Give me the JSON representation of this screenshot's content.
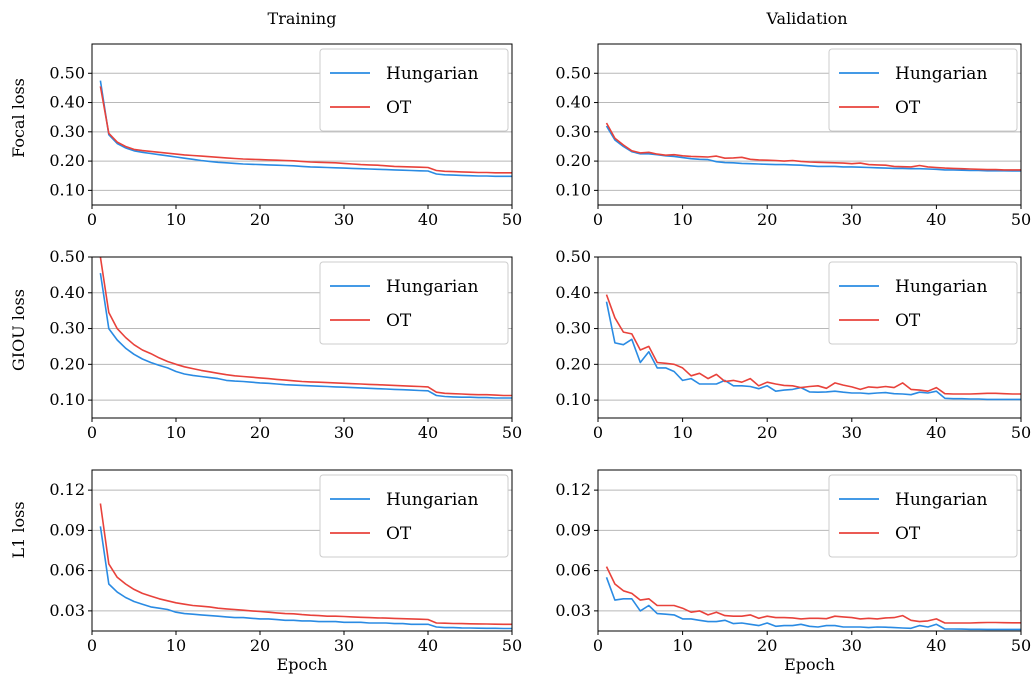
{
  "column_titles": [
    "Training",
    "Validation"
  ],
  "row_labels": [
    "Focal loss",
    "GIOU loss",
    "L1 loss"
  ],
  "colors": {
    "Hungarian": "#2a8be3",
    "OT": "#e8423b",
    "grid": "#b8b8b8"
  },
  "chart_data": [
    {
      "type": "line",
      "title": "Training",
      "xlabel": "",
      "ylabel": "Focal loss",
      "xlim": [
        0,
        50
      ],
      "ylim": [
        0.05,
        0.6
      ],
      "xticks": [
        0,
        10,
        20,
        30,
        40,
        50
      ],
      "yticks": [
        0.1,
        0.2,
        0.3,
        0.4,
        0.5
      ],
      "ytick_labels": [
        "0.10",
        "0.20",
        "0.30",
        "0.40",
        "0.50"
      ],
      "grid": "y",
      "legend": "top-right",
      "x": [
        1,
        2,
        3,
        4,
        5,
        6,
        7,
        8,
        9,
        10,
        11,
        12,
        13,
        14,
        15,
        16,
        17,
        18,
        19,
        20,
        21,
        22,
        23,
        24,
        25,
        26,
        27,
        28,
        29,
        30,
        31,
        32,
        33,
        34,
        35,
        36,
        37,
        38,
        39,
        40,
        41,
        42,
        43,
        44,
        45,
        46,
        47,
        48,
        49,
        50
      ],
      "series": [
        {
          "name": "Hungarian",
          "values": [
            0.475,
            0.29,
            0.26,
            0.245,
            0.235,
            0.23,
            0.226,
            0.222,
            0.218,
            0.214,
            0.21,
            0.206,
            0.202,
            0.199,
            0.196,
            0.194,
            0.192,
            0.19,
            0.189,
            0.188,
            0.187,
            0.186,
            0.185,
            0.184,
            0.182,
            0.18,
            0.179,
            0.178,
            0.177,
            0.176,
            0.175,
            0.174,
            0.173,
            0.172,
            0.171,
            0.17,
            0.169,
            0.168,
            0.167,
            0.166,
            0.156,
            0.153,
            0.152,
            0.151,
            0.15,
            0.149,
            0.149,
            0.148,
            0.148,
            0.148
          ]
        },
        {
          "name": "OT",
          "values": [
            0.455,
            0.295,
            0.265,
            0.25,
            0.24,
            0.236,
            0.233,
            0.23,
            0.227,
            0.224,
            0.221,
            0.219,
            0.217,
            0.215,
            0.213,
            0.211,
            0.209,
            0.207,
            0.206,
            0.205,
            0.204,
            0.203,
            0.202,
            0.201,
            0.199,
            0.197,
            0.196,
            0.195,
            0.194,
            0.192,
            0.19,
            0.188,
            0.187,
            0.186,
            0.184,
            0.182,
            0.181,
            0.18,
            0.179,
            0.178,
            0.168,
            0.165,
            0.164,
            0.163,
            0.162,
            0.161,
            0.161,
            0.16,
            0.16,
            0.16
          ]
        }
      ]
    },
    {
      "type": "line",
      "title": "Validation",
      "xlabel": "",
      "ylabel": "",
      "xlim": [
        0,
        50
      ],
      "ylim": [
        0.05,
        0.6
      ],
      "xticks": [
        0,
        10,
        20,
        30,
        40,
        50
      ],
      "yticks": [
        0.1,
        0.2,
        0.3,
        0.4,
        0.5
      ],
      "ytick_labels": [
        "0.10",
        "0.20",
        "0.30",
        "0.40",
        "0.50"
      ],
      "grid": "y",
      "legend": "top-right",
      "x": [
        1,
        2,
        3,
        4,
        5,
        6,
        7,
        8,
        9,
        10,
        11,
        12,
        13,
        14,
        15,
        16,
        17,
        18,
        19,
        20,
        21,
        22,
        23,
        24,
        25,
        26,
        27,
        28,
        29,
        30,
        31,
        32,
        33,
        34,
        35,
        36,
        37,
        38,
        39,
        40,
        41,
        42,
        43,
        44,
        45,
        46,
        47,
        48,
        49,
        50
      ],
      "series": [
        {
          "name": "Hungarian",
          "values": [
            0.32,
            0.272,
            0.25,
            0.232,
            0.225,
            0.225,
            0.222,
            0.218,
            0.216,
            0.212,
            0.208,
            0.206,
            0.205,
            0.198,
            0.195,
            0.194,
            0.192,
            0.191,
            0.19,
            0.189,
            0.188,
            0.188,
            0.187,
            0.186,
            0.184,
            0.182,
            0.182,
            0.182,
            0.18,
            0.18,
            0.179,
            0.178,
            0.177,
            0.176,
            0.175,
            0.175,
            0.174,
            0.174,
            0.173,
            0.172,
            0.17,
            0.17,
            0.169,
            0.168,
            0.168,
            0.167,
            0.167,
            0.167,
            0.166,
            0.166
          ]
        },
        {
          "name": "OT",
          "values": [
            0.33,
            0.278,
            0.255,
            0.235,
            0.228,
            0.23,
            0.224,
            0.22,
            0.222,
            0.218,
            0.216,
            0.215,
            0.214,
            0.217,
            0.21,
            0.211,
            0.213,
            0.206,
            0.204,
            0.203,
            0.202,
            0.2,
            0.202,
            0.199,
            0.197,
            0.196,
            0.195,
            0.194,
            0.193,
            0.191,
            0.193,
            0.188,
            0.187,
            0.186,
            0.182,
            0.181,
            0.18,
            0.185,
            0.18,
            0.178,
            0.176,
            0.175,
            0.174,
            0.173,
            0.172,
            0.171,
            0.171,
            0.17,
            0.17,
            0.17
          ]
        }
      ]
    },
    {
      "type": "line",
      "title": "",
      "xlabel": "",
      "ylabel": "GIOU loss",
      "xlim": [
        0,
        50
      ],
      "ylim": [
        0.05,
        0.5
      ],
      "xticks": [
        0,
        10,
        20,
        30,
        40,
        50
      ],
      "yticks": [
        0.1,
        0.2,
        0.3,
        0.4,
        0.5
      ],
      "ytick_labels": [
        "0.10",
        "0.20",
        "0.30",
        "0.40",
        "0.50"
      ],
      "grid": "y",
      "legend": "top-right",
      "x": [
        1,
        2,
        3,
        4,
        5,
        6,
        7,
        8,
        9,
        10,
        11,
        12,
        13,
        14,
        15,
        16,
        17,
        18,
        19,
        20,
        21,
        22,
        23,
        24,
        25,
        26,
        27,
        28,
        29,
        30,
        31,
        32,
        33,
        34,
        35,
        36,
        37,
        38,
        39,
        40,
        41,
        42,
        43,
        44,
        45,
        46,
        47,
        48,
        49,
        50
      ],
      "series": [
        {
          "name": "Hungarian",
          "values": [
            0.455,
            0.3,
            0.268,
            0.245,
            0.228,
            0.215,
            0.205,
            0.197,
            0.19,
            0.18,
            0.173,
            0.169,
            0.166,
            0.163,
            0.16,
            0.155,
            0.153,
            0.152,
            0.15,
            0.148,
            0.147,
            0.145,
            0.143,
            0.142,
            0.141,
            0.14,
            0.139,
            0.138,
            0.137,
            0.136,
            0.135,
            0.134,
            0.133,
            0.132,
            0.131,
            0.13,
            0.129,
            0.128,
            0.127,
            0.126,
            0.113,
            0.11,
            0.109,
            0.108,
            0.108,
            0.107,
            0.107,
            0.106,
            0.106,
            0.106
          ]
        },
        {
          "name": "OT",
          "values": [
            0.5,
            0.345,
            0.3,
            0.275,
            0.255,
            0.24,
            0.23,
            0.218,
            0.208,
            0.2,
            0.193,
            0.188,
            0.183,
            0.179,
            0.175,
            0.171,
            0.168,
            0.166,
            0.164,
            0.162,
            0.16,
            0.158,
            0.156,
            0.154,
            0.152,
            0.151,
            0.15,
            0.149,
            0.148,
            0.147,
            0.146,
            0.145,
            0.144,
            0.143,
            0.142,
            0.141,
            0.14,
            0.139,
            0.138,
            0.137,
            0.122,
            0.119,
            0.118,
            0.117,
            0.116,
            0.115,
            0.115,
            0.114,
            0.113,
            0.113
          ]
        }
      ]
    },
    {
      "type": "line",
      "title": "",
      "xlabel": "",
      "ylabel": "",
      "xlim": [
        0,
        50
      ],
      "ylim": [
        0.05,
        0.5
      ],
      "xticks": [
        0,
        10,
        20,
        30,
        40,
        50
      ],
      "yticks": [
        0.1,
        0.2,
        0.3,
        0.4,
        0.5
      ],
      "ytick_labels": [
        "0.10",
        "0.20",
        "0.30",
        "0.40",
        "0.50"
      ],
      "grid": "y",
      "legend": "top-right",
      "x": [
        1,
        2,
        3,
        4,
        5,
        6,
        7,
        8,
        9,
        10,
        11,
        12,
        13,
        14,
        15,
        16,
        17,
        18,
        19,
        20,
        21,
        22,
        23,
        24,
        25,
        26,
        27,
        28,
        29,
        30,
        31,
        32,
        33,
        34,
        35,
        36,
        37,
        38,
        39,
        40,
        41,
        42,
        43,
        44,
        45,
        46,
        47,
        48,
        49,
        50
      ],
      "series": [
        {
          "name": "Hungarian",
          "values": [
            0.375,
            0.26,
            0.255,
            0.27,
            0.205,
            0.235,
            0.19,
            0.19,
            0.18,
            0.155,
            0.16,
            0.145,
            0.145,
            0.145,
            0.155,
            0.14,
            0.14,
            0.138,
            0.132,
            0.14,
            0.125,
            0.128,
            0.13,
            0.135,
            0.123,
            0.122,
            0.123,
            0.125,
            0.122,
            0.12,
            0.12,
            0.118,
            0.12,
            0.121,
            0.118,
            0.117,
            0.115,
            0.122,
            0.12,
            0.125,
            0.105,
            0.104,
            0.104,
            0.103,
            0.103,
            0.102,
            0.102,
            0.102,
            0.102,
            0.102
          ]
        },
        {
          "name": "OT",
          "values": [
            0.395,
            0.33,
            0.29,
            0.285,
            0.24,
            0.25,
            0.205,
            0.203,
            0.2,
            0.19,
            0.168,
            0.175,
            0.16,
            0.172,
            0.152,
            0.155,
            0.15,
            0.16,
            0.14,
            0.15,
            0.145,
            0.141,
            0.14,
            0.135,
            0.138,
            0.14,
            0.133,
            0.148,
            0.142,
            0.137,
            0.13,
            0.137,
            0.135,
            0.138,
            0.135,
            0.148,
            0.13,
            0.128,
            0.125,
            0.135,
            0.118,
            0.117,
            0.117,
            0.117,
            0.118,
            0.119,
            0.119,
            0.118,
            0.117,
            0.117
          ]
        }
      ]
    },
    {
      "type": "line",
      "title": "",
      "xlabel": "Epoch",
      "ylabel": "L1 loss",
      "xlim": [
        0,
        50
      ],
      "ylim": [
        0.015,
        0.135
      ],
      "xticks": [
        0,
        10,
        20,
        30,
        40,
        50
      ],
      "yticks": [
        0.03,
        0.06,
        0.09,
        0.12
      ],
      "ytick_labels": [
        "0.03",
        "0.06",
        "0.09",
        "0.12"
      ],
      "grid": "y",
      "legend": "top-right",
      "x": [
        1,
        2,
        3,
        4,
        5,
        6,
        7,
        8,
        9,
        10,
        11,
        12,
        13,
        14,
        15,
        16,
        17,
        18,
        19,
        20,
        21,
        22,
        23,
        24,
        25,
        26,
        27,
        28,
        29,
        30,
        31,
        32,
        33,
        34,
        35,
        36,
        37,
        38,
        39,
        40,
        41,
        42,
        43,
        44,
        45,
        46,
        47,
        48,
        49,
        50
      ],
      "series": [
        {
          "name": "Hungarian",
          "values": [
            0.093,
            0.05,
            0.044,
            0.04,
            0.037,
            0.035,
            0.033,
            0.032,
            0.031,
            0.029,
            0.028,
            0.0275,
            0.027,
            0.0265,
            0.026,
            0.0255,
            0.025,
            0.025,
            0.0245,
            0.024,
            0.024,
            0.0235,
            0.023,
            0.023,
            0.0225,
            0.0225,
            0.022,
            0.022,
            0.022,
            0.0215,
            0.0215,
            0.0215,
            0.021,
            0.021,
            0.021,
            0.0205,
            0.0205,
            0.02,
            0.02,
            0.02,
            0.018,
            0.0175,
            0.0175,
            0.0173,
            0.0172,
            0.0171,
            0.017,
            0.017,
            0.0169,
            0.0169
          ]
        },
        {
          "name": "OT",
          "values": [
            0.11,
            0.065,
            0.055,
            0.05,
            0.046,
            0.043,
            0.041,
            0.039,
            0.0375,
            0.036,
            0.035,
            0.034,
            0.0335,
            0.033,
            0.032,
            0.0315,
            0.031,
            0.0305,
            0.03,
            0.0295,
            0.029,
            0.0285,
            0.028,
            0.0278,
            0.0272,
            0.0268,
            0.0265,
            0.026,
            0.026,
            0.0258,
            0.0255,
            0.0252,
            0.025,
            0.0248,
            0.0246,
            0.0244,
            0.0242,
            0.024,
            0.0238,
            0.0236,
            0.021,
            0.0208,
            0.0206,
            0.0205,
            0.0204,
            0.0203,
            0.0202,
            0.0201,
            0.02,
            0.02
          ]
        }
      ]
    },
    {
      "type": "line",
      "title": "",
      "xlabel": "Epoch",
      "ylabel": "",
      "xlim": [
        0,
        50
      ],
      "ylim": [
        0.015,
        0.135
      ],
      "xticks": [
        0,
        10,
        20,
        30,
        40,
        50
      ],
      "yticks": [
        0.03,
        0.06,
        0.09,
        0.12
      ],
      "ytick_labels": [
        "0.03",
        "0.06",
        "0.09",
        "0.12"
      ],
      "grid": "y",
      "legend": "top-right",
      "x": [
        1,
        2,
        3,
        4,
        5,
        6,
        7,
        8,
        9,
        10,
        11,
        12,
        13,
        14,
        15,
        16,
        17,
        18,
        19,
        20,
        21,
        22,
        23,
        24,
        25,
        26,
        27,
        28,
        29,
        30,
        31,
        32,
        33,
        34,
        35,
        36,
        37,
        38,
        39,
        40,
        41,
        42,
        43,
        44,
        45,
        46,
        47,
        48,
        49,
        50
      ],
      "series": [
        {
          "name": "Hungarian",
          "values": [
            0.055,
            0.038,
            0.039,
            0.039,
            0.03,
            0.034,
            0.028,
            0.0275,
            0.027,
            0.024,
            0.024,
            0.023,
            0.022,
            0.022,
            0.023,
            0.0205,
            0.021,
            0.02,
            0.019,
            0.021,
            0.0185,
            0.019,
            0.019,
            0.02,
            0.0185,
            0.018,
            0.019,
            0.019,
            0.018,
            0.018,
            0.018,
            0.0175,
            0.018,
            0.0178,
            0.0175,
            0.0172,
            0.017,
            0.019,
            0.018,
            0.02,
            0.0165,
            0.0165,
            0.0164,
            0.0163,
            0.0163,
            0.0162,
            0.0162,
            0.0162,
            0.0162,
            0.0162
          ]
        },
        {
          "name": "OT",
          "values": [
            0.063,
            0.05,
            0.045,
            0.043,
            0.038,
            0.039,
            0.034,
            0.034,
            0.034,
            0.032,
            0.029,
            0.03,
            0.027,
            0.029,
            0.0265,
            0.026,
            0.026,
            0.027,
            0.0245,
            0.026,
            0.025,
            0.025,
            0.0248,
            0.024,
            0.0245,
            0.0245,
            0.0242,
            0.026,
            0.0255,
            0.025,
            0.024,
            0.0245,
            0.024,
            0.0248,
            0.025,
            0.0265,
            0.023,
            0.022,
            0.0225,
            0.024,
            0.021,
            0.021,
            0.021,
            0.021,
            0.0212,
            0.0213,
            0.0213,
            0.0212,
            0.0211,
            0.0211
          ]
        }
      ]
    }
  ]
}
